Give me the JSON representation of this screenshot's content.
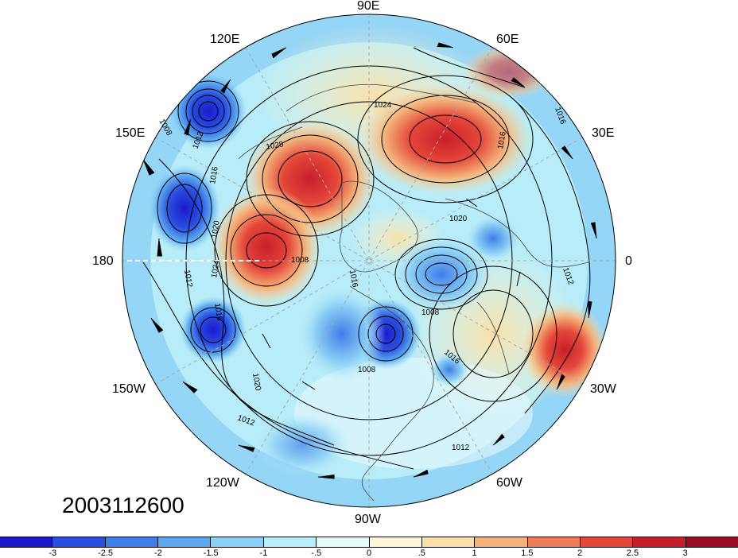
{
  "map": {
    "projection": "north-polar-stereographic",
    "center_longitude_label": "90W",
    "longitude_labels": {
      "lon_90e": "90E",
      "lon_60e": "60E",
      "lon_30e": "30E",
      "lon_0": "0",
      "lon_30w": "30W",
      "lon_60w": "60W",
      "lon_90w": "90W",
      "lon_120w": "120W",
      "lon_150w": "150W",
      "lon_180": "180",
      "lon_150e": "150E",
      "lon_120e": "120E"
    },
    "contour_labels": [
      "1008",
      "1012",
      "1016",
      "1020",
      "1024",
      "1028"
    ],
    "contour_unit_hint": "sea-level pressure contours",
    "overlay": "wind barbs"
  },
  "timestamp": "2003112600",
  "colorbar": {
    "labels": [
      "-3",
      "-2.5",
      "-2",
      "-1.5",
      "-1",
      "-.5",
      "0",
      ".5",
      "1",
      "1.5",
      "2",
      "2.5",
      "3"
    ],
    "colors": [
      "#1a1acc",
      "#2a4fe0",
      "#3f7ee8",
      "#5ca8f0",
      "#8ccff5",
      "#b8ecf8",
      "#e6f9fb",
      "#fdf6d8",
      "#f9e0a8",
      "#f4b27a",
      "#ee7c58",
      "#e4463a",
      "#c81e2a",
      "#9c0c22"
    ]
  }
}
